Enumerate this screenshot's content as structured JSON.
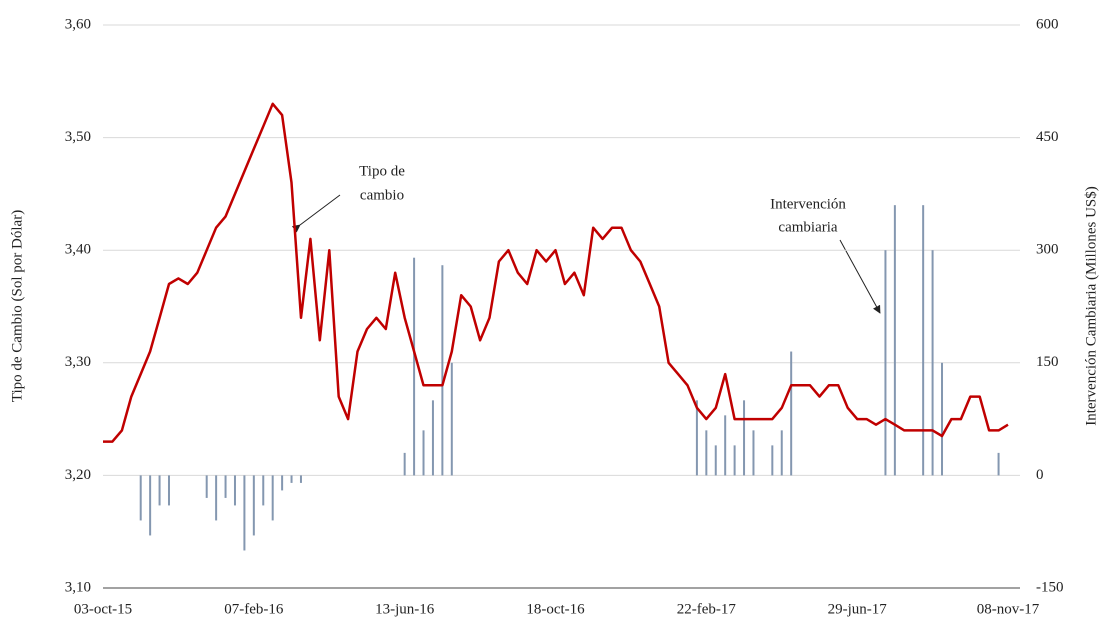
{
  "chart_data": {
    "type": "line-bar",
    "y_label": "Tipo de Cambio (Sol por Dólar)",
    "y2_label": "Intervención Cambiaria (Millones US$)",
    "categories": [
      "03-oct-15",
      null,
      null,
      null,
      null,
      null,
      null,
      null,
      null,
      null,
      null,
      null,
      null,
      null,
      null,
      null,
      "07-feb-16",
      null,
      null,
      null,
      null,
      null,
      null,
      null,
      null,
      null,
      null,
      null,
      null,
      null,
      null,
      null,
      "13-jun-16",
      null,
      null,
      null,
      null,
      null,
      null,
      null,
      null,
      null,
      null,
      null,
      null,
      null,
      null,
      null,
      "18-oct-16",
      null,
      null,
      null,
      null,
      null,
      null,
      null,
      null,
      null,
      null,
      null,
      null,
      null,
      null,
      null,
      "22-feb-17",
      null,
      null,
      null,
      null,
      null,
      null,
      null,
      null,
      null,
      null,
      null,
      null,
      null,
      null,
      null,
      "29-jun-17",
      null,
      null,
      null,
      null,
      null,
      null,
      null,
      null,
      null,
      null,
      null,
      null,
      null,
      null,
      null,
      "08-nov-17"
    ],
    "series": [
      {
        "name": "Intervención cambiaria",
        "kind": "bar",
        "axis": "y2",
        "color": "#8497b0",
        "values": [
          0,
          0,
          0,
          0,
          -60,
          -80,
          -40,
          -40,
          0,
          0,
          0,
          -30,
          -60,
          -30,
          -40,
          -100,
          -80,
          -40,
          -60,
          -20,
          -10,
          -10,
          0,
          0,
          0,
          0,
          0,
          0,
          0,
          0,
          0,
          0,
          30,
          290,
          60,
          100,
          280,
          150,
          0,
          0,
          0,
          0,
          0,
          0,
          0,
          0,
          0,
          0,
          0,
          0,
          0,
          0,
          0,
          0,
          0,
          0,
          0,
          0,
          0,
          0,
          0,
          0,
          0,
          100,
          60,
          40,
          80,
          40,
          100,
          60,
          0,
          40,
          60,
          165,
          0,
          0,
          0,
          0,
          0,
          0,
          0,
          0,
          0,
          300,
          360,
          0,
          0,
          360,
          300,
          150,
          0,
          0,
          0,
          0,
          0,
          30,
          0
        ]
      },
      {
        "name": "Tipo de cambio",
        "kind": "line",
        "axis": "y",
        "color": "#c00000",
        "values": [
          3.23,
          3.23,
          3.24,
          3.27,
          3.29,
          3.31,
          3.34,
          3.37,
          3.375,
          3.37,
          3.38,
          3.4,
          3.42,
          3.43,
          3.45,
          3.47,
          3.49,
          3.51,
          3.53,
          3.52,
          3.46,
          3.34,
          3.41,
          3.32,
          3.4,
          3.27,
          3.25,
          3.31,
          3.33,
          3.34,
          3.33,
          3.38,
          3.34,
          3.31,
          3.28,
          3.28,
          3.28,
          3.31,
          3.36,
          3.35,
          3.32,
          3.34,
          3.39,
          3.4,
          3.38,
          3.37,
          3.4,
          3.39,
          3.4,
          3.37,
          3.38,
          3.36,
          3.42,
          3.41,
          3.42,
          3.42,
          3.4,
          3.39,
          3.37,
          3.35,
          3.3,
          3.29,
          3.28,
          3.26,
          3.25,
          3.26,
          3.29,
          3.25,
          3.25,
          3.25,
          3.25,
          3.25,
          3.26,
          3.28,
          3.28,
          3.28,
          3.27,
          3.28,
          3.28,
          3.26,
          3.25,
          3.25,
          3.245,
          3.25,
          3.245,
          3.24,
          3.24,
          3.24,
          3.24,
          3.235,
          3.25,
          3.25,
          3.27,
          3.27,
          3.24,
          3.24,
          3.245
        ]
      }
    ],
    "ylim": [
      3.1,
      3.6
    ],
    "yticks": [
      {
        "value": 3.1,
        "label": "3,10"
      },
      {
        "value": 3.2,
        "label": "3,20"
      },
      {
        "value": 3.3,
        "label": "3,30"
      },
      {
        "value": 3.4,
        "label": "3,40"
      },
      {
        "value": 3.5,
        "label": "3,50"
      },
      {
        "value": 3.6,
        "label": "3,60"
      }
    ],
    "y2lim": [
      -150,
      600
    ],
    "y2ticks": [
      -150,
      0,
      150,
      300,
      450,
      600
    ],
    "grid": true,
    "annotations": [
      {
        "lines": [
          "Tipo de",
          "cambio"
        ]
      },
      {
        "lines": [
          "Intervención",
          "cambiaria"
        ]
      }
    ]
  }
}
